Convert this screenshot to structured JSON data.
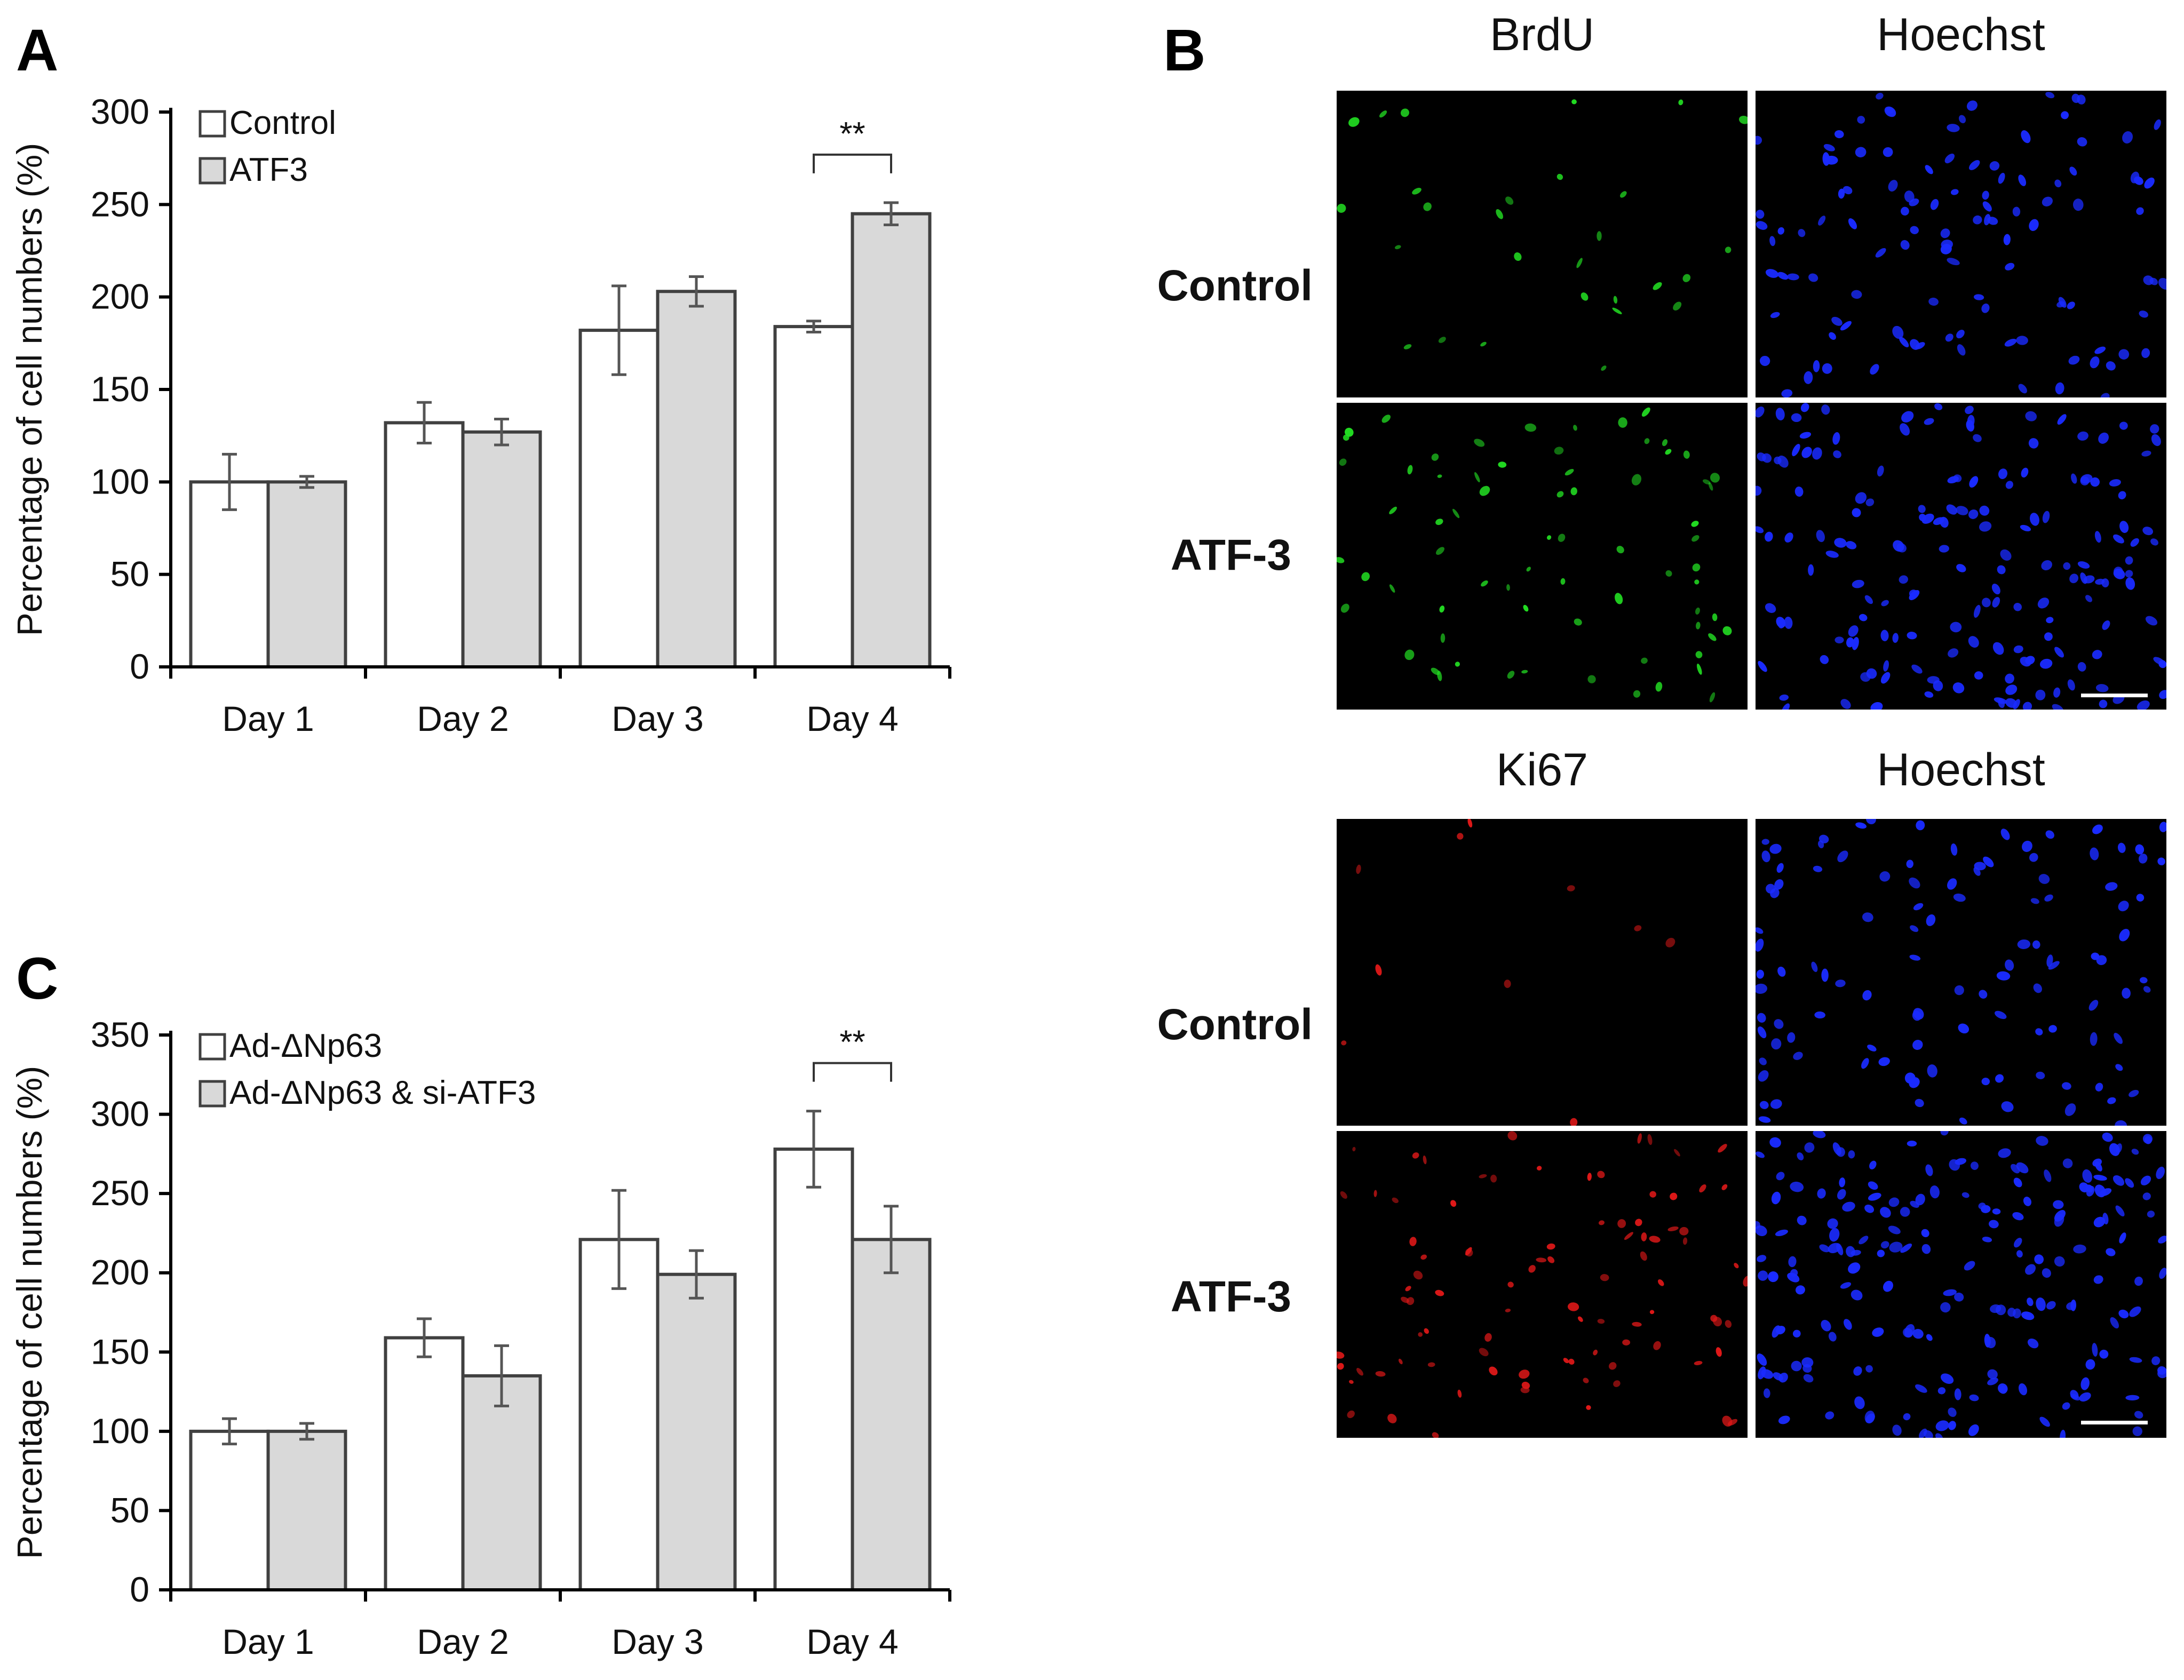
{
  "panels": {
    "a": {
      "letter": "A"
    },
    "b": {
      "letter": "B"
    },
    "c": {
      "letter": "C"
    }
  },
  "chart_data": [
    {
      "id": "A",
      "type": "bar",
      "title": "",
      "xlabel": "",
      "ylabel": "Percentage of cell numbers (%)",
      "ylim": [
        0,
        300
      ],
      "yticks": [
        0,
        50,
        100,
        150,
        200,
        250,
        300
      ],
      "categories": [
        "Day 1",
        "Day 2",
        "Day 3",
        "Day 4"
      ],
      "legend_position": "top-left",
      "series": [
        {
          "name": "Control",
          "color": "#ffffff",
          "values": [
            100,
            132,
            182,
            184
          ],
          "errors": [
            15,
            11,
            24,
            3
          ]
        },
        {
          "name": "ATF3",
          "color": "#d9d9d9",
          "values": [
            100,
            127,
            203,
            245
          ],
          "errors": [
            3,
            7,
            8,
            6
          ]
        }
      ],
      "annotations": [
        {
          "text": "**",
          "category": "Day 4"
        }
      ]
    },
    {
      "id": "C",
      "type": "bar",
      "title": "",
      "xlabel": "",
      "ylabel": "Percentage of cell numbers (%)",
      "ylim": [
        0,
        350
      ],
      "yticks": [
        0,
        50,
        100,
        150,
        200,
        250,
        300,
        350
      ],
      "categories": [
        "Day 1",
        "Day 2",
        "Day 3",
        "Day 4"
      ],
      "legend_position": "top-left",
      "series": [
        {
          "name": "Ad-ΔNp63",
          "color": "#ffffff",
          "values": [
            100,
            159,
            221,
            278
          ],
          "errors": [
            8,
            12,
            31,
            24
          ]
        },
        {
          "name": "Ad-ΔNp63 & si-ATF3",
          "color": "#d9d9d9",
          "values": [
            100,
            135,
            199,
            221
          ],
          "errors": [
            5,
            19,
            15,
            21
          ]
        }
      ],
      "annotations": [
        {
          "text": "**",
          "category": "Day 4"
        }
      ]
    }
  ],
  "microscopy": {
    "top": {
      "columns": [
        "BrdU",
        "Hoechst"
      ],
      "rows": [
        "Control",
        "ATF-3"
      ],
      "stain_colors": [
        "#22dd22",
        "#1a2bff"
      ]
    },
    "bottom": {
      "columns": [
        "Ki67",
        "Hoechst"
      ],
      "rows": [
        "Control",
        "ATF-3"
      ],
      "stain_colors": [
        "#e01818",
        "#1a2bff"
      ]
    }
  }
}
